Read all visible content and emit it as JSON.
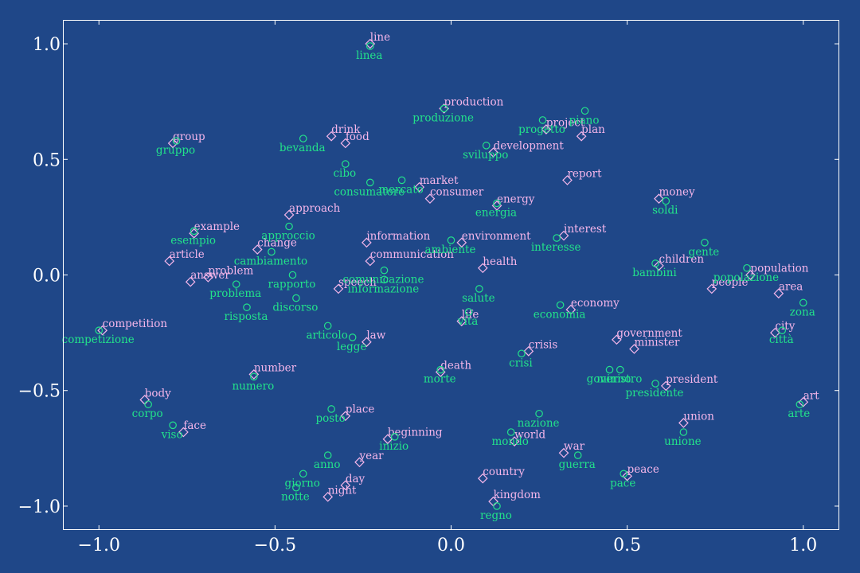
{
  "chart_data": {
    "type": "scatter",
    "title": "",
    "xlabel": "",
    "ylabel": "",
    "xlim": [
      -1.1,
      1.1
    ],
    "ylim": [
      -1.1,
      1.1
    ],
    "grid": false,
    "xticks": [
      -1.0,
      -0.5,
      0.0,
      0.5,
      1.0
    ],
    "yticks": [
      -1.0,
      -0.5,
      0.0,
      0.5,
      1.0
    ],
    "xtick_labels": [
      "−1.0",
      "−0.5",
      "0.0",
      "0.5",
      "1.0"
    ],
    "ytick_labels": [
      "−1.0",
      "−0.5",
      "0.0",
      "0.5",
      "1.0"
    ],
    "colors": {
      "background": "#1f4788",
      "english": "#f5b6ea",
      "italian": "#22e28a",
      "axes": "#ffffff"
    },
    "series": [
      {
        "marker": "diamond",
        "points": [
          {
            "label": "line",
            "x": -0.23,
            "y": 1.0
          },
          {
            "label": "production",
            "x": -0.02,
            "y": 0.72
          },
          {
            "label": "project",
            "x": 0.27,
            "y": 0.63
          },
          {
            "label": "plan",
            "x": 0.37,
            "y": 0.6
          },
          {
            "label": "development",
            "x": 0.12,
            "y": 0.53
          },
          {
            "label": "group",
            "x": -0.79,
            "y": 0.57
          },
          {
            "label": "drink",
            "x": -0.34,
            "y": 0.6
          },
          {
            "label": "food",
            "x": -0.3,
            "y": 0.57
          },
          {
            "label": "report",
            "x": 0.33,
            "y": 0.41
          },
          {
            "label": "market",
            "x": -0.09,
            "y": 0.38
          },
          {
            "label": "consumer",
            "x": -0.06,
            "y": 0.33
          },
          {
            "label": "money",
            "x": 0.59,
            "y": 0.33
          },
          {
            "label": "energy",
            "x": 0.13,
            "y": 0.3
          },
          {
            "label": "approach",
            "x": -0.46,
            "y": 0.26
          },
          {
            "label": "example",
            "x": -0.73,
            "y": 0.18
          },
          {
            "label": "interest",
            "x": 0.32,
            "y": 0.17
          },
          {
            "label": "information",
            "x": -0.24,
            "y": 0.14
          },
          {
            "label": "environment",
            "x": 0.03,
            "y": 0.14
          },
          {
            "label": "change",
            "x": -0.55,
            "y": 0.11
          },
          {
            "label": "article",
            "x": -0.8,
            "y": 0.06
          },
          {
            "label": "communication",
            "x": -0.23,
            "y": 0.06
          },
          {
            "label": "health",
            "x": 0.09,
            "y": 0.03
          },
          {
            "label": "children",
            "x": 0.59,
            "y": 0.04
          },
          {
            "label": "population",
            "x": 0.85,
            "y": 0.0
          },
          {
            "label": "problem",
            "x": -0.69,
            "y": -0.01
          },
          {
            "label": "answer",
            "x": -0.74,
            "y": -0.03
          },
          {
            "label": "speech",
            "x": -0.32,
            "y": -0.06
          },
          {
            "label": "people",
            "x": 0.74,
            "y": -0.06
          },
          {
            "label": "area",
            "x": 0.93,
            "y": -0.08
          },
          {
            "label": "economy",
            "x": 0.34,
            "y": -0.15
          },
          {
            "label": "life",
            "x": 0.03,
            "y": -0.2
          },
          {
            "label": "competition",
            "x": -0.99,
            "y": -0.24
          },
          {
            "label": "city",
            "x": 0.92,
            "y": -0.25
          },
          {
            "label": "law",
            "x": -0.24,
            "y": -0.29
          },
          {
            "label": "government",
            "x": 0.47,
            "y": -0.28
          },
          {
            "label": "minister",
            "x": 0.52,
            "y": -0.32
          },
          {
            "label": "crisis",
            "x": 0.22,
            "y": -0.33
          },
          {
            "label": "death",
            "x": -0.03,
            "y": -0.42
          },
          {
            "label": "number",
            "x": -0.56,
            "y": -0.43
          },
          {
            "label": "president",
            "x": 0.61,
            "y": -0.48
          },
          {
            "label": "art",
            "x": 1.0,
            "y": -0.55
          },
          {
            "label": "body",
            "x": -0.87,
            "y": -0.54
          },
          {
            "label": "place",
            "x": -0.3,
            "y": -0.61
          },
          {
            "label": "union",
            "x": 0.66,
            "y": -0.64
          },
          {
            "label": "face",
            "x": -0.76,
            "y": -0.68
          },
          {
            "label": "beginning",
            "x": -0.18,
            "y": -0.71
          },
          {
            "label": "world",
            "x": 0.18,
            "y": -0.72
          },
          {
            "label": "year",
            "x": -0.26,
            "y": -0.81
          },
          {
            "label": "war",
            "x": 0.32,
            "y": -0.77
          },
          {
            "label": "country",
            "x": 0.09,
            "y": -0.88
          },
          {
            "label": "peace",
            "x": 0.5,
            "y": -0.87
          },
          {
            "label": "day",
            "x": -0.3,
            "y": -0.91
          },
          {
            "label": "night",
            "x": -0.35,
            "y": -0.96
          },
          {
            "label": "kingdom",
            "x": 0.12,
            "y": -0.98
          }
        ]
      },
      {
        "marker": "circle",
        "points": [
          {
            "label": "linea",
            "x": -0.23,
            "y": 0.99
          },
          {
            "label": "produzione",
            "x": -0.02,
            "y": 0.72
          },
          {
            "label": "piano",
            "x": 0.38,
            "y": 0.71
          },
          {
            "label": "progetto",
            "x": 0.26,
            "y": 0.67
          },
          {
            "label": "sviluppo",
            "x": 0.1,
            "y": 0.56
          },
          {
            "label": "gruppo",
            "x": -0.78,
            "y": 0.58
          },
          {
            "label": "bevanda",
            "x": -0.42,
            "y": 0.59
          },
          {
            "label": "cibo",
            "x": -0.3,
            "y": 0.48
          },
          {
            "label": "mercato",
            "x": -0.14,
            "y": 0.41
          },
          {
            "label": "consumatore",
            "x": -0.23,
            "y": 0.4
          },
          {
            "label": "soldi",
            "x": 0.61,
            "y": 0.32
          },
          {
            "label": "energia",
            "x": 0.13,
            "y": 0.31
          },
          {
            "label": "approccio",
            "x": -0.46,
            "y": 0.21
          },
          {
            "label": "esempio",
            "x": -0.73,
            "y": 0.19
          },
          {
            "label": "interesse",
            "x": 0.3,
            "y": 0.16
          },
          {
            "label": "ambiente",
            "x": 0.0,
            "y": 0.15
          },
          {
            "label": "cambiamento",
            "x": -0.51,
            "y": 0.1
          },
          {
            "label": "gente",
            "x": 0.72,
            "y": 0.14
          },
          {
            "label": "bambini",
            "x": 0.58,
            "y": 0.05
          },
          {
            "label": "popolazione",
            "x": 0.84,
            "y": 0.03
          },
          {
            "label": "comunicazione",
            "x": -0.19,
            "y": 0.02
          },
          {
            "label": "rapporto",
            "x": -0.45,
            "y": 0.0
          },
          {
            "label": "problema",
            "x": -0.61,
            "y": -0.04
          },
          {
            "label": "informazione",
            "x": -0.19,
            "y": -0.02
          },
          {
            "label": "salute",
            "x": 0.08,
            "y": -0.06
          },
          {
            "label": "discorso",
            "x": -0.44,
            "y": -0.1
          },
          {
            "label": "risposta",
            "x": -0.58,
            "y": -0.14
          },
          {
            "label": "zona",
            "x": 1.0,
            "y": -0.12
          },
          {
            "label": "economia",
            "x": 0.31,
            "y": -0.13
          },
          {
            "label": "vita",
            "x": 0.05,
            "y": -0.16
          },
          {
            "label": "competizione",
            "x": -1.0,
            "y": -0.24
          },
          {
            "label": "articolo",
            "x": -0.35,
            "y": -0.22
          },
          {
            "label": "città",
            "x": 0.94,
            "y": -0.24
          },
          {
            "label": "legge",
            "x": -0.28,
            "y": -0.27
          },
          {
            "label": "crisi",
            "x": 0.2,
            "y": -0.34
          },
          {
            "label": "governo",
            "x": 0.45,
            "y": -0.41
          },
          {
            "label": "ministro",
            "x": 0.48,
            "y": -0.41
          },
          {
            "label": "morte",
            "x": -0.03,
            "y": -0.41
          },
          {
            "label": "numero",
            "x": -0.56,
            "y": -0.44
          },
          {
            "label": "presidente",
            "x": 0.58,
            "y": -0.47
          },
          {
            "label": "arte",
            "x": 0.99,
            "y": -0.56
          },
          {
            "label": "corpo",
            "x": -0.86,
            "y": -0.56
          },
          {
            "label": "posto",
            "x": -0.34,
            "y": -0.58
          },
          {
            "label": "nazione",
            "x": 0.25,
            "y": -0.6
          },
          {
            "label": "unione",
            "x": 0.66,
            "y": -0.68
          },
          {
            "label": "viso",
            "x": -0.79,
            "y": -0.65
          },
          {
            "label": "mondo",
            "x": 0.17,
            "y": -0.68
          },
          {
            "label": "inizio",
            "x": -0.16,
            "y": -0.7
          },
          {
            "label": "guerra",
            "x": 0.36,
            "y": -0.78
          },
          {
            "label": "anno",
            "x": -0.35,
            "y": -0.78
          },
          {
            "label": "giorno",
            "x": -0.42,
            "y": -0.86
          },
          {
            "label": "notte",
            "x": -0.44,
            "y": -0.92
          },
          {
            "label": "pace",
            "x": 0.49,
            "y": -0.86
          },
          {
            "label": "regno",
            "x": 0.13,
            "y": -1.0
          }
        ]
      }
    ]
  }
}
